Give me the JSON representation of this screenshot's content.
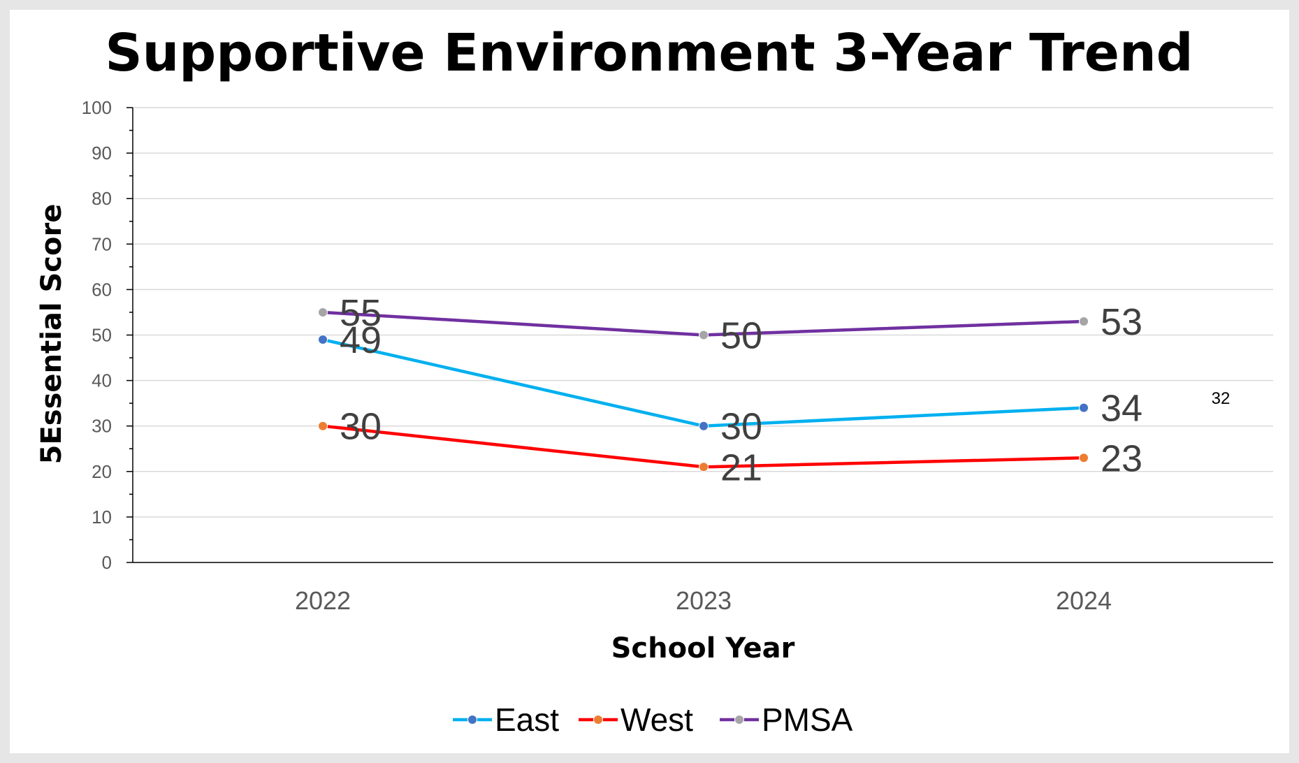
{
  "chart_data": {
    "type": "line",
    "title": "Supportive Environment 3-Year Trend",
    "xlabel": "School Year",
    "ylabel": "5Essential Score",
    "categories": [
      "2022",
      "2023",
      "2024"
    ],
    "ylim": [
      0,
      100
    ],
    "y_ticks": [
      "0",
      "10",
      "20",
      "30",
      "40",
      "50",
      "60",
      "70",
      "80",
      "90",
      "100"
    ],
    "grid": true,
    "legend_position": "bottom",
    "series": [
      {
        "name": "East",
        "values": [
          49,
          30,
          34
        ],
        "line_color": "#00b0f0",
        "marker_color": "#4472c4"
      },
      {
        "name": "West",
        "values": [
          30,
          21,
          23
        ],
        "line_color": "#ff0000",
        "marker_color": "#ed7d31"
      },
      {
        "name": "PMSA",
        "values": [
          55,
          50,
          53
        ],
        "line_color": "#7030a0",
        "marker_color": "#a5a5a5"
      }
    ],
    "annotations": [
      "32"
    ]
  }
}
